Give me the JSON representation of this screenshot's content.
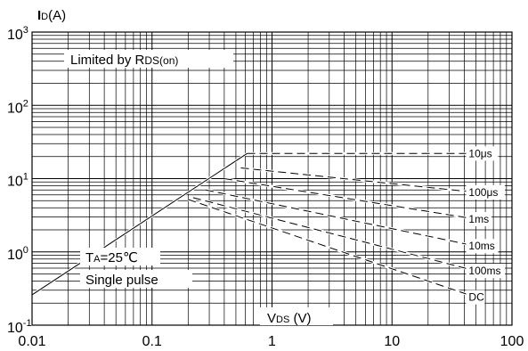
{
  "chart_data": {
    "type": "line",
    "title": "",
    "ylabel_main": "I",
    "ylabel_sub": "D",
    "ylabel_unit": "(A)",
    "xlabel_main": "V",
    "xlabel_sub": "DS",
    "xlabel_unit": " (V)",
    "x_scale": "log",
    "y_scale": "log",
    "xlim": [
      0.01,
      100
    ],
    "ylim": [
      0.1,
      1000
    ],
    "grid": true,
    "x_ticks": [
      {
        "value": 0.01,
        "label": "0.01"
      },
      {
        "value": 0.1,
        "label": "0.1"
      },
      {
        "value": 1,
        "label": "1"
      },
      {
        "value": 10,
        "label": "10"
      },
      {
        "value": 100,
        "label": "100"
      }
    ],
    "y_ticks": [
      {
        "value": 0.1,
        "base": "10",
        "exp": "-1"
      },
      {
        "value": 1,
        "base": "10",
        "exp": "0"
      },
      {
        "value": 10,
        "base": "10",
        "exp": "1"
      },
      {
        "value": 100,
        "base": "10",
        "exp": "2"
      },
      {
        "value": 1000,
        "base": "10",
        "exp": "3"
      }
    ],
    "annotations": {
      "limited_main": "Limited by R",
      "limited_sub": "DS(on)",
      "ta_main": "T",
      "ta_sub": "A",
      "ta_value": "=25℃",
      "single_pulse": "Single pulse"
    },
    "series": [
      {
        "name": "10μs",
        "style": "dashed",
        "x": [
          0.62,
          50
        ],
        "y": [
          22,
          22
        ]
      },
      {
        "name": "100μs",
        "style": "dashed",
        "x": [
          0.55,
          50
        ],
        "y": [
          14,
          6.5
        ]
      },
      {
        "name": "1ms",
        "style": "dashed",
        "x": [
          0.4,
          50
        ],
        "y": [
          10,
          2.8
        ]
      },
      {
        "name": "10ms",
        "style": "dashed",
        "x": [
          0.28,
          50
        ],
        "y": [
          7,
          1.2
        ]
      },
      {
        "name": "100ms",
        "style": "dashed",
        "x": [
          0.22,
          50
        ],
        "y": [
          5.5,
          0.55
        ]
      },
      {
        "name": "DC",
        "style": "dashed",
        "x": [
          0.2,
          50
        ],
        "y": [
          5.2,
          0.24
        ]
      },
      {
        "name": "",
        "style": "solid",
        "x": [
          0.01,
          0.62
        ],
        "y": [
          0.26,
          22
        ]
      }
    ]
  }
}
